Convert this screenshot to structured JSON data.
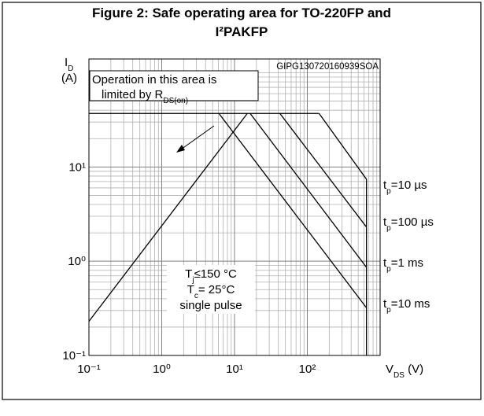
{
  "chart_data": {
    "type": "line",
    "title_lines": [
      "Figure 2: Safe operating area for TO-220FP and",
      "I²PAKFP"
    ],
    "code": "GIPG130720160939SOA",
    "x_label": {
      "main": "V",
      "sub": "DS",
      "unit": " (V)"
    },
    "y_label": {
      "main": "I",
      "sub": "D",
      "unit": "(A)"
    },
    "xscale": "log",
    "yscale": "log",
    "grid": true,
    "xlim": [
      0.1,
      1000
    ],
    "ylim": [
      0.1,
      140
    ],
    "xticks": [
      {
        "value": 0.1,
        "label": "10⁻¹"
      },
      {
        "value": 1,
        "label": "10⁰"
      },
      {
        "value": 10,
        "label": "10¹"
      },
      {
        "value": 100,
        "label": "10²"
      }
    ],
    "yticks": [
      {
        "value": 0.1,
        "label": "10⁻¹"
      },
      {
        "value": 1,
        "label": "10⁰"
      },
      {
        "value": 10,
        "label": "10¹"
      }
    ],
    "minor_xticks": [
      0.2,
      0.3,
      0.4,
      0.5,
      0.6,
      0.7,
      0.8,
      0.9,
      2,
      3,
      4,
      5,
      6,
      7,
      8,
      9,
      20,
      30,
      40,
      50,
      60,
      70,
      80,
      90,
      200,
      300,
      400,
      500,
      600,
      700,
      800,
      900
    ],
    "minor_yticks": [
      0.2,
      0.3,
      0.4,
      0.5,
      0.6,
      0.7,
      0.8,
      0.9,
      2,
      3,
      4,
      5,
      6,
      7,
      8,
      9,
      20,
      30,
      40,
      50,
      60,
      70,
      80,
      90,
      100
    ],
    "color": "#000000",
    "series": [
      {
        "x": [
          0.1,
          15
        ],
        "values": [
          0.23,
          37
        ]
      },
      {
        "x": [
          0.1,
          145
        ],
        "values": [
          37,
          37
        ]
      },
      {
        "label": {
          "t": "t",
          "sub": "p",
          "rest": "=10 µs"
        },
        "x": [
          145,
          650,
          650
        ],
        "values": [
          37,
          7.4,
          0.1
        ]
      },
      {
        "label": {
          "t": "t",
          "sub": "p",
          "rest": "=100 µs"
        },
        "x": [
          42,
          650
        ],
        "values": [
          37,
          2.3
        ]
      },
      {
        "label": {
          "t": "t",
          "sub": "p",
          "rest": "=1 ms"
        },
        "x": [
          16.4,
          650
        ],
        "values": [
          37,
          0.86
        ]
      },
      {
        "label": {
          "t": "t",
          "sub": "p",
          "rest": "=10 ms"
        },
        "x": [
          6.1,
          650
        ],
        "values": [
          37,
          0.32
        ]
      }
    ],
    "note": {
      "line1": "Operation in this area is",
      "line2": "limited by R",
      "sub": "DS(on)"
    },
    "conditions": [
      {
        "main": "T",
        "sub": "j",
        "rest": "≤150 °C"
      },
      {
        "main": "T",
        "sub": "c",
        "rest": "= 25°C"
      },
      {
        "main": "single pulse"
      }
    ]
  }
}
